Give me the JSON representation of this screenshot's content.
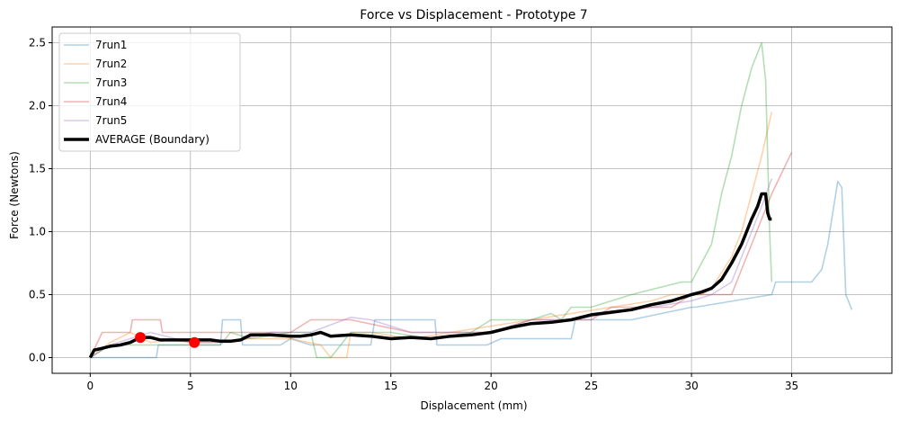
{
  "chart_data": {
    "type": "line",
    "title": "Force vs Displacement - Prototype 7",
    "xlabel": "Displacement (mm)",
    "ylabel": "Force (Newtons)",
    "xlim": [
      -1.9,
      40.0
    ],
    "ylim": [
      -0.125,
      2.625
    ],
    "xticks": [
      0,
      5,
      10,
      15,
      20,
      25,
      30,
      35
    ],
    "yticks": [
      0.0,
      0.5,
      1.0,
      1.5,
      2.0,
      2.5
    ],
    "xtick_labels": [
      "0",
      "5",
      "10",
      "15",
      "20",
      "25",
      "30",
      "35"
    ],
    "ytick_labels": [
      "0.0",
      "0.5",
      "1.0",
      "1.5",
      "2.0",
      "2.5"
    ],
    "grid": true,
    "legend_position": "top-left",
    "series": [
      {
        "name": "7run1",
        "color": "#1f77b4",
        "opacity": 0.35,
        "x": [
          0,
          3.3,
          3.4,
          6.5,
          6.6,
          7.5,
          7.6,
          9.5,
          10.0,
          11.0,
          14.0,
          14.2,
          17.2,
          17.3,
          19.8,
          20.5,
          21.0,
          24.0,
          24.2,
          27.0,
          30.0,
          30.2,
          34.0,
          34.2,
          35.0,
          36.0,
          36.5,
          36.8,
          37.0,
          37.3,
          37.5,
          37.7,
          37.9,
          38.0
        ],
        "y": [
          0.0,
          0.0,
          0.1,
          0.1,
          0.3,
          0.3,
          0.1,
          0.1,
          0.15,
          0.1,
          0.1,
          0.3,
          0.3,
          0.1,
          0.1,
          0.15,
          0.15,
          0.15,
          0.3,
          0.3,
          0.4,
          0.4,
          0.5,
          0.6,
          0.6,
          0.6,
          0.7,
          0.9,
          1.1,
          1.4,
          1.35,
          0.5,
          0.42,
          0.38
        ]
      },
      {
        "name": "7run2",
        "color": "#ff7f0e",
        "opacity": 0.35,
        "x": [
          0,
          1.0,
          2.0,
          3.0,
          4.0,
          5.0,
          6.0,
          8.0,
          10.0,
          11.5,
          12.0,
          12.8,
          13.0,
          14.0,
          16.0,
          18.0,
          20.0,
          22.0,
          24.0,
          26.0,
          28.0,
          29.0,
          30.5,
          31.0,
          32.0,
          32.5,
          33.0,
          33.5,
          34.0
        ],
        "y": [
          0.0,
          0.12,
          0.2,
          0.12,
          0.14,
          0.12,
          0.12,
          0.15,
          0.15,
          0.1,
          0.0,
          0.0,
          0.2,
          0.2,
          0.15,
          0.2,
          0.25,
          0.3,
          0.35,
          0.4,
          0.45,
          0.5,
          0.5,
          0.55,
          0.8,
          1.0,
          1.3,
          1.6,
          1.95
        ]
      },
      {
        "name": "7run3",
        "color": "#2ca02c",
        "opacity": 0.35,
        "x": [
          0,
          1.0,
          3.0,
          5.0,
          6.5,
          7.0,
          8.0,
          10.0,
          11.0,
          11.3,
          12.0,
          13.0,
          15.0,
          17.0,
          19.0,
          20.0,
          22.0,
          23.0,
          23.5,
          24.0,
          25.0,
          27.0,
          29.5,
          30.0,
          31.0,
          31.5,
          32.0,
          32.5,
          33.0,
          33.5,
          33.7,
          33.9,
          34.0
        ],
        "y": [
          0.0,
          0.1,
          0.1,
          0.1,
          0.1,
          0.2,
          0.15,
          0.2,
          0.2,
          0.0,
          0.0,
          0.2,
          0.2,
          0.15,
          0.2,
          0.3,
          0.3,
          0.35,
          0.3,
          0.4,
          0.4,
          0.5,
          0.6,
          0.6,
          0.9,
          1.3,
          1.6,
          2.0,
          2.3,
          2.5,
          2.2,
          1.0,
          0.6
        ]
      },
      {
        "name": "7run4",
        "color": "#d62728",
        "opacity": 0.35,
        "x": [
          0,
          0.3,
          0.6,
          2.0,
          2.1,
          3.5,
          3.6,
          5.0,
          8.0,
          8.2,
          10.0,
          11.0,
          12.0,
          13.0,
          16.0,
          18.0,
          20.0,
          22.0,
          25.0,
          26.0,
          29.0,
          30.0,
          32.0,
          32.5,
          33.0,
          34.0,
          35.0
        ],
        "y": [
          0.0,
          0.1,
          0.2,
          0.2,
          0.3,
          0.3,
          0.2,
          0.2,
          0.2,
          0.2,
          0.2,
          0.3,
          0.3,
          0.3,
          0.2,
          0.2,
          0.2,
          0.3,
          0.3,
          0.4,
          0.4,
          0.5,
          0.5,
          0.7,
          0.9,
          1.3,
          1.63
        ]
      },
      {
        "name": "7run5",
        "color": "#9467bd",
        "opacity": 0.35,
        "x": [
          0,
          1.0,
          3.0,
          5.0,
          7.0,
          9.0,
          11.0,
          13.0,
          14.0,
          16.0,
          18.0,
          20.0,
          22.0,
          24.0,
          26.0,
          28.0,
          30.0,
          31.0,
          32.0,
          32.5,
          33.0,
          33.5,
          34.0
        ],
        "y": [
          0.0,
          0.1,
          0.2,
          0.12,
          0.12,
          0.2,
          0.2,
          0.32,
          0.3,
          0.2,
          0.2,
          0.2,
          0.3,
          0.3,
          0.35,
          0.4,
          0.45,
          0.5,
          0.6,
          0.8,
          1.0,
          1.2,
          1.42
        ]
      },
      {
        "name": "AVERAGE (Boundary)",
        "color": "#000000",
        "opacity": 1.0,
        "width": 3.5,
        "x": [
          0,
          0.2,
          0.5,
          1.0,
          1.5,
          2.0,
          2.5,
          3.0,
          3.5,
          4.0,
          4.5,
          5.0,
          5.5,
          6.0,
          6.5,
          7.0,
          7.5,
          8.0,
          9.0,
          10.0,
          10.5,
          11.0,
          11.5,
          12.0,
          13.0,
          14.0,
          15.0,
          16.0,
          17.0,
          18.0,
          19.0,
          20.0,
          21.0,
          22.0,
          23.0,
          24.0,
          25.0,
          26.0,
          27.0,
          28.0,
          29.0,
          30.0,
          30.5,
          31.0,
          31.5,
          32.0,
          32.5,
          33.0,
          33.3,
          33.5,
          33.7,
          33.8,
          33.9,
          34.0
        ],
        "y": [
          0.0,
          0.06,
          0.07,
          0.09,
          0.1,
          0.12,
          0.16,
          0.16,
          0.14,
          0.14,
          0.14,
          0.14,
          0.14,
          0.14,
          0.13,
          0.13,
          0.14,
          0.18,
          0.18,
          0.17,
          0.17,
          0.18,
          0.2,
          0.17,
          0.18,
          0.17,
          0.15,
          0.16,
          0.15,
          0.17,
          0.18,
          0.2,
          0.24,
          0.27,
          0.28,
          0.3,
          0.34,
          0.36,
          0.38,
          0.42,
          0.45,
          0.5,
          0.52,
          0.55,
          0.62,
          0.75,
          0.9,
          1.1,
          1.2,
          1.3,
          1.3,
          1.15,
          1.1,
          1.1
        ]
      }
    ],
    "markers": [
      {
        "x": 2.5,
        "y": 0.16,
        "color": "#ff0000"
      },
      {
        "x": 5.2,
        "y": 0.12,
        "color": "#ff0000"
      }
    ]
  }
}
